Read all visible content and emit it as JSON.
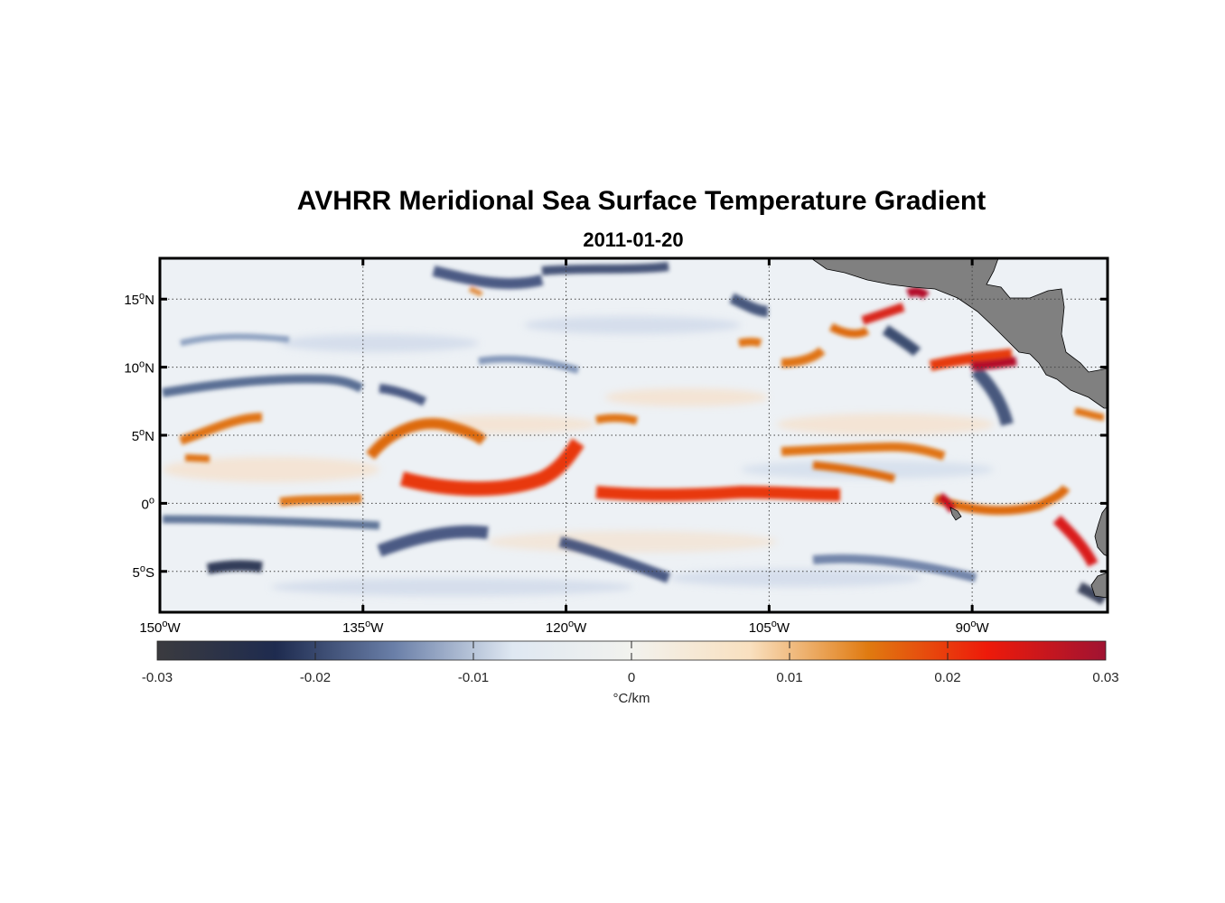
{
  "title": "AVHRR Meridional Sea Surface Temperature Gradient",
  "subtitle": "2011-01-20",
  "map": {
    "lon_range": [
      -150,
      -80
    ],
    "lat_range": [
      -8,
      18
    ],
    "grid": "dotted",
    "land_color": "#808080",
    "lon_ticks": [
      {
        "value": -150,
        "label": "150",
        "sup": "o",
        "suffix": "W"
      },
      {
        "value": -135,
        "label": "135",
        "sup": "o",
        "suffix": "W"
      },
      {
        "value": -120,
        "label": "120",
        "sup": "o",
        "suffix": "W"
      },
      {
        "value": -105,
        "label": "105",
        "sup": "o",
        "suffix": "W"
      },
      {
        "value": -90,
        "label": "90",
        "sup": "o",
        "suffix": "W"
      }
    ],
    "lat_ticks": [
      {
        "value": 15,
        "label": "15",
        "sup": "o",
        "suffix": "N"
      },
      {
        "value": 10,
        "label": "10",
        "sup": "o",
        "suffix": "N"
      },
      {
        "value": 5,
        "label": "5",
        "sup": "o",
        "suffix": "N"
      },
      {
        "value": 0,
        "label": "0",
        "sup": "o",
        "suffix": ""
      },
      {
        "value": -5,
        "label": "5",
        "sup": "o",
        "suffix": "S"
      }
    ]
  },
  "colorbar": {
    "range": [
      -0.03,
      0.03
    ],
    "ticks": [
      "-0.03",
      "-0.02",
      "-0.01",
      "0",
      "0.01",
      "0.02",
      "0.03"
    ],
    "units": "°C/km",
    "stops": [
      "#3b3b3f",
      "#1e2b4f",
      "#6a7fa8",
      "#dfe8f2",
      "#f2f2ee",
      "#f9e0bf",
      "#e07a10",
      "#ee1a0a",
      "#a01332"
    ]
  }
}
